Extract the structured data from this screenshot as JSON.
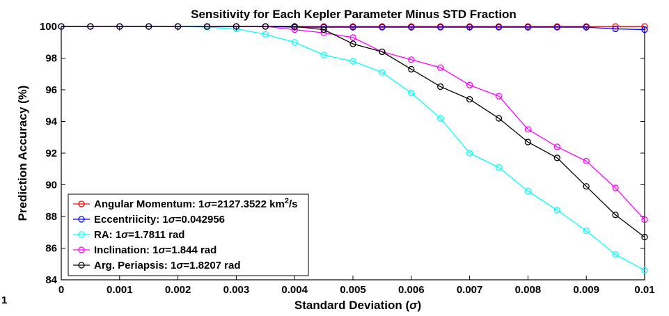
{
  "chart_data": {
    "type": "line",
    "title": "Sensitivity for Each Kepler Parameter Minus STD Fraction",
    "xlabel": "Standard Deviation (σ)",
    "ylabel": "Prediction Accuracy (%)",
    "xlim": [
      0,
      0.01
    ],
    "ylim": [
      84,
      100
    ],
    "grid": false,
    "legend_position": "bottom-left",
    "x_ticks": [
      "0",
      "0.001",
      "0.002",
      "0.003",
      "0.004",
      "0.005",
      "0.006",
      "0.007",
      "0.008",
      "0.009",
      "0.01"
    ],
    "y_ticks": [
      "84",
      "86",
      "88",
      "90",
      "92",
      "94",
      "96",
      "98",
      "100"
    ],
    "x": [
      0,
      0.0005,
      0.001,
      0.0015,
      0.002,
      0.0025,
      0.003,
      0.0035,
      0.004,
      0.0045,
      0.005,
      0.0055,
      0.006,
      0.0065,
      0.007,
      0.0075,
      0.008,
      0.0085,
      0.009,
      0.0095,
      0.01
    ],
    "series": [
      {
        "name": "Angular Momentum: 1σ=2127.3522 km²/s",
        "legend_parts": {
          "prefix": "Angular Momentum: 1",
          "sym": "σ",
          "mid": "=2127.3522 km",
          "sup": "2",
          "suffix": "/s"
        },
        "color": "#ff0000",
        "values": [
          100,
          100,
          100,
          100,
          100,
          100,
          100,
          100,
          100,
          100,
          100,
          100,
          100,
          100,
          100,
          100,
          100,
          100,
          100,
          100,
          100
        ]
      },
      {
        "name": "Eccentriicity: 1σ=0.042956",
        "legend_parts": {
          "prefix": "Eccentriicity: 1",
          "sym": "σ",
          "mid": "=0.042956",
          "sup": "",
          "suffix": ""
        },
        "color": "#0000ff",
        "values": [
          100,
          100,
          100,
          100,
          100,
          100,
          100,
          100,
          99.95,
          99.95,
          99.95,
          99.95,
          99.95,
          99.95,
          99.95,
          99.95,
          99.95,
          99.95,
          99.95,
          99.85,
          99.8
        ]
      },
      {
        "name": "RA: 1σ=1.7811 rad",
        "legend_parts": {
          "prefix": "RA: 1",
          "sym": "σ",
          "mid": "=1.7811 rad",
          "sup": "",
          "suffix": ""
        },
        "color": "#00ffff",
        "values": [
          100,
          100,
          100,
          100,
          100,
          99.95,
          99.85,
          99.5,
          99.0,
          98.2,
          97.8,
          97.1,
          95.8,
          94.2,
          92.0,
          91.1,
          89.6,
          88.4,
          87.1,
          85.6,
          84.6
        ]
      },
      {
        "name": "Inclination: 1σ=1.844 rad",
        "legend_parts": {
          "prefix": "Inclination: 1",
          "sym": "σ",
          "mid": "=1.844 rad",
          "sup": "",
          "suffix": ""
        },
        "color": "#ff00ff",
        "values": [
          100,
          100,
          100,
          100,
          100,
          100,
          100,
          100,
          99.8,
          99.6,
          99.3,
          98.4,
          97.9,
          97.4,
          96.3,
          95.6,
          93.5,
          92.4,
          91.5,
          89.8,
          87.8
        ]
      },
      {
        "name": "Arg. Periapsis: 1σ=1.8207 rad",
        "legend_parts": {
          "prefix": "Arg. Periapsis: 1",
          "sym": "σ",
          "mid": "=1.8207 rad",
          "sup": "",
          "suffix": ""
        },
        "color": "#000000",
        "values": [
          100,
          100,
          100,
          100,
          100,
          100,
          100,
          100,
          100,
          99.8,
          98.9,
          98.4,
          97.3,
          96.2,
          95.4,
          94.2,
          92.7,
          91.7,
          89.9,
          88.1,
          86.7
        ]
      }
    ]
  },
  "xlabel_parts": {
    "prefix": "Standard Deviation (",
    "sym": "σ",
    "suffix": ")"
  },
  "stray_label": "1"
}
